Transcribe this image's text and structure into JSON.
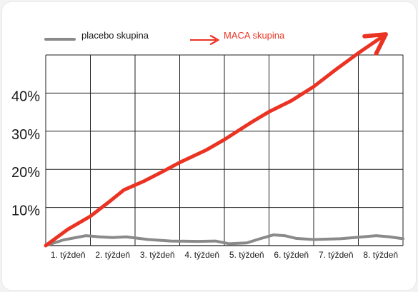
{
  "chart_data": {
    "type": "line",
    "categories": [
      "1. týždeň",
      "2. týždeň",
      "3. týždeň",
      "4. týždeň",
      "5. týždeň",
      "6. týždeň",
      "7. týždeň",
      "8. týždeň"
    ],
    "yticks": [
      "10%",
      "20%",
      "30%",
      "40%"
    ],
    "ylim": [
      0,
      50
    ],
    "xlim": [
      0,
      8
    ],
    "grid": true,
    "legend_position": "top",
    "series": [
      {
        "name": "placebo skupina",
        "color": "#8a8a8a",
        "points": [
          [
            0,
            0
          ],
          [
            0.4,
            1.5
          ],
          [
            0.9,
            2.6
          ],
          [
            1.2,
            2.3
          ],
          [
            1.5,
            2.1
          ],
          [
            1.8,
            2.3
          ],
          [
            2.3,
            1.6
          ],
          [
            2.8,
            1.2
          ],
          [
            3.4,
            1.1
          ],
          [
            3.8,
            1.2
          ],
          [
            4.1,
            0.5
          ],
          [
            4.5,
            0.7
          ],
          [
            4.8,
            1.8
          ],
          [
            5.1,
            2.8
          ],
          [
            5.35,
            2.6
          ],
          [
            5.6,
            1.9
          ],
          [
            6,
            1.6
          ],
          [
            6.6,
            1.8
          ],
          [
            7.1,
            2.3
          ],
          [
            7.4,
            2.6
          ],
          [
            7.7,
            2.3
          ],
          [
            8,
            1.8
          ]
        ]
      },
      {
        "name": "MACA skupina",
        "color": "#ea3323",
        "points": [
          [
            0,
            0
          ],
          [
            0.5,
            4.3
          ],
          [
            1,
            7.7
          ],
          [
            1.4,
            11.3
          ],
          [
            1.75,
            14.6
          ],
          [
            2.2,
            16.9
          ],
          [
            2.6,
            19.3
          ],
          [
            3,
            21.8
          ],
          [
            3.6,
            25.1
          ],
          [
            4,
            27.8
          ],
          [
            4.6,
            32.3
          ],
          [
            5,
            35.1
          ],
          [
            5.5,
            38.0
          ],
          [
            6,
            41.7
          ],
          [
            6.5,
            46.2
          ],
          [
            7,
            50.5
          ],
          [
            7.5,
            54.5
          ]
        ]
      }
    ]
  }
}
